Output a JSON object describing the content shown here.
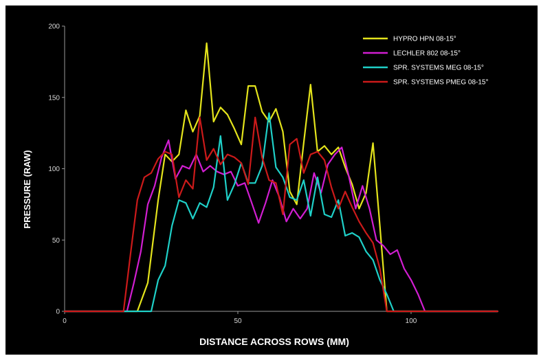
{
  "chart_data": {
    "type": "line",
    "title": "",
    "xlabel": "DISTANCE ACROSS ROWS (MM)",
    "ylabel": "PRESSURE (RAW)",
    "xlim": [
      0,
      125
    ],
    "ylim": [
      0,
      200
    ],
    "xticks": [
      "0",
      "50",
      "100"
    ],
    "yticks": [
      "0",
      "50",
      "100",
      "150",
      "200"
    ],
    "x_tick_values": [
      0,
      50,
      100
    ],
    "y_tick_values": [
      0,
      50,
      100,
      150,
      200
    ],
    "grid": false,
    "legend_position": "top-right",
    "background": "#000000",
    "series": [
      {
        "name": "HYPRO HPN 08-15°",
        "color": "#e4e41c",
        "x": [
          0,
          21,
          24,
          27,
          29,
          31,
          33,
          35,
          37,
          39,
          41,
          43,
          45,
          47,
          49,
          51,
          53,
          55,
          57,
          59,
          61,
          63,
          65,
          67,
          69,
          71,
          73,
          75,
          77,
          79,
          81,
          83,
          85,
          87,
          89,
          91,
          93,
          95,
          125
        ],
        "y": [
          0,
          0,
          20,
          78,
          110,
          105,
          110,
          141,
          126,
          137,
          188,
          133,
          143,
          138,
          128,
          117,
          158,
          158,
          140,
          133,
          142,
          126,
          84,
          75,
          118,
          159,
          112,
          116,
          110,
          115,
          101,
          89,
          72,
          83,
          118,
          60,
          0,
          0,
          0
        ]
      },
      {
        "name": "LECHLER 802 08-15°",
        "color": "#d21ed2",
        "x": [
          0,
          18,
          20,
          22,
          24,
          26,
          28,
          30,
          32,
          34,
          36,
          38,
          40,
          42,
          44,
          46,
          48,
          50,
          52,
          54,
          56,
          58,
          60,
          62,
          64,
          66,
          68,
          70,
          72,
          74,
          76,
          78,
          80,
          82,
          84,
          86,
          88,
          90,
          92,
          94,
          96,
          98,
          100,
          102,
          104,
          125
        ],
        "y": [
          0,
          0,
          20,
          42,
          75,
          88,
          108,
          120,
          93,
          102,
          100,
          110,
          98,
          102,
          98,
          96,
          98,
          88,
          90,
          76,
          62,
          76,
          92,
          80,
          63,
          72,
          65,
          72,
          97,
          83,
          103,
          110,
          115,
          95,
          72,
          88,
          72,
          50,
          46,
          40,
          43,
          30,
          22,
          12,
          0,
          0
        ]
      },
      {
        "name": "SPR. SYSTEMS MEG 08-15°",
        "color": "#1fd0c8",
        "x": [
          0,
          25,
          27,
          29,
          31,
          33,
          35,
          37,
          39,
          41,
          43,
          45,
          47,
          49,
          51,
          53,
          55,
          57,
          59,
          61,
          63,
          65,
          67,
          69,
          71,
          73,
          75,
          77,
          79,
          81,
          83,
          85,
          87,
          89,
          91,
          93,
          95,
          97,
          99,
          125
        ],
        "y": [
          0,
          0,
          22,
          32,
          60,
          78,
          76,
          65,
          76,
          73,
          87,
          123,
          78,
          89,
          104,
          90,
          90,
          102,
          139,
          101,
          94,
          80,
          78,
          92,
          67,
          94,
          68,
          66,
          78,
          53,
          55,
          52,
          42,
          36,
          22,
          12,
          0,
          0,
          0,
          0
        ]
      },
      {
        "name": "SPR. SYSTEMS PMEG 08-15°",
        "color": "#cc1a1a",
        "x": [
          0,
          17,
          19,
          21,
          23,
          25,
          27,
          29,
          31,
          33,
          35,
          37,
          39,
          41,
          43,
          45,
          47,
          49,
          51,
          53,
          55,
          57,
          59,
          61,
          63,
          65,
          67,
          69,
          71,
          73,
          75,
          77,
          79,
          81,
          83,
          85,
          87,
          89,
          91,
          93,
          95,
          125
        ],
        "y": [
          0,
          0,
          40,
          78,
          94,
          97,
          107,
          112,
          110,
          80,
          92,
          86,
          136,
          106,
          114,
          103,
          110,
          108,
          104,
          89,
          136,
          108,
          92,
          90,
          68,
          117,
          121,
          97,
          110,
          112,
          106,
          87,
          72,
          84,
          73,
          63,
          55,
          48,
          30,
          0,
          0,
          0
        ]
      }
    ]
  }
}
